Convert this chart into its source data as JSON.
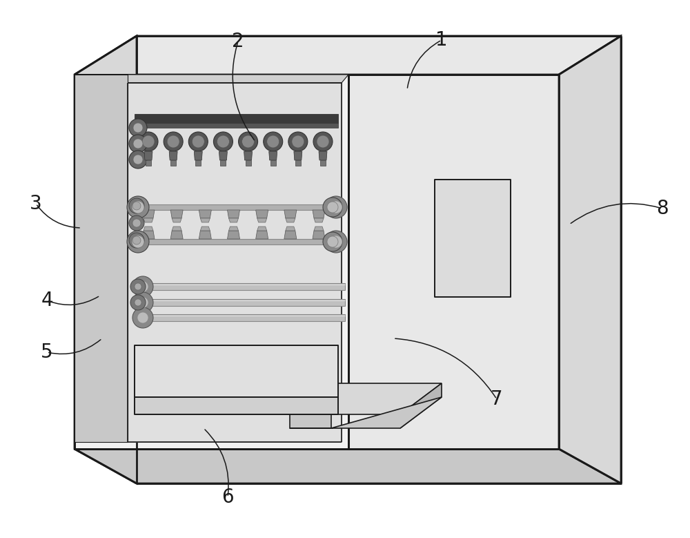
{
  "bg_color": "#ffffff",
  "line_color": "#1a1a1a",
  "gray1": "#e8e8e8",
  "gray2": "#d8d8d8",
  "gray3": "#c8c8c8",
  "gray4": "#b8b8b8",
  "dark_gray": "#555555",
  "mid_gray": "#888888",
  "light_gray": "#cccccc",
  "lw_thick": 2.0,
  "lw_thin": 1.2,
  "lw_inner": 1.0,
  "label_fontsize": 20,
  "annotations": [
    [
      "1",
      640,
      58,
      590,
      130
    ],
    [
      "2",
      345,
      60,
      370,
      205
    ],
    [
      "3",
      52,
      295,
      118,
      330
    ],
    [
      "4",
      68,
      435,
      145,
      428
    ],
    [
      "5",
      68,
      510,
      148,
      490
    ],
    [
      "6",
      330,
      720,
      295,
      620
    ],
    [
      "7",
      720,
      578,
      570,
      490
    ],
    [
      "8",
      960,
      302,
      825,
      325
    ]
  ]
}
